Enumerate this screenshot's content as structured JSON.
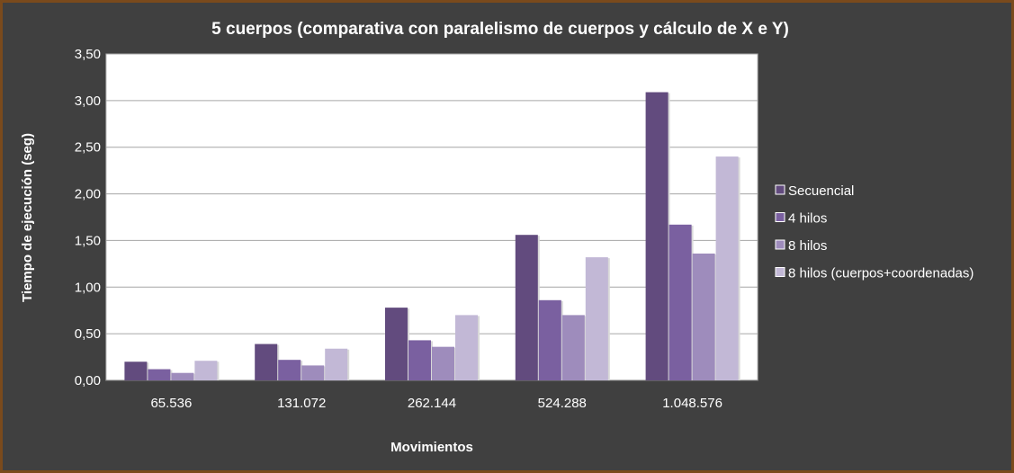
{
  "chart_data": {
    "type": "bar",
    "title": "5 cuerpos (comparativa con paralelismo de cuerpos y cálculo de X e Y)",
    "xlabel": "Movimientos",
    "ylabel": "Tiempo de ejecución (seg)",
    "ylim": [
      0,
      3.5
    ],
    "ytick_step": 0.5,
    "yticks": [
      "0,00",
      "0,50",
      "1,00",
      "1,50",
      "2,00",
      "2,50",
      "3,00",
      "3,50"
    ],
    "categories": [
      "65.536",
      "131.072",
      "262.144",
      "524.288",
      "1.048.576"
    ],
    "grid": true,
    "legend_position": "right",
    "series": [
      {
        "name": "Secuencial",
        "color": "#624b7e",
        "values": [
          0.2,
          0.39,
          0.78,
          1.56,
          3.09
        ]
      },
      {
        "name": "4 hilos",
        "color": "#7a60a0",
        "values": [
          0.12,
          0.22,
          0.43,
          0.86,
          1.67
        ]
      },
      {
        "name": "8 hilos",
        "color": "#9e8cbc",
        "values": [
          0.08,
          0.16,
          0.36,
          0.7,
          1.36
        ]
      },
      {
        "name": "8 hilos (cuerpos+coordenadas)",
        "color": "#c2b8d6",
        "values": [
          0.21,
          0.34,
          0.7,
          1.32,
          2.4
        ]
      }
    ]
  }
}
